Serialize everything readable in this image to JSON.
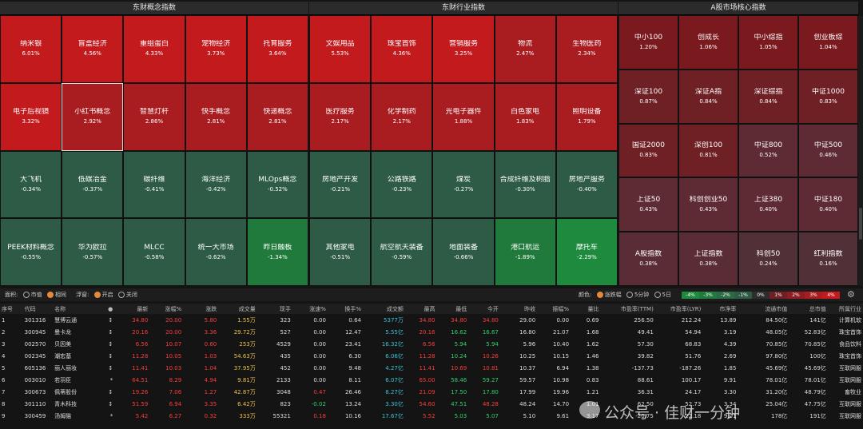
{
  "panels": {
    "concept_title": "东财概念指数",
    "industry_title": "东财行业指数",
    "market_title": "A股市场核心指数"
  },
  "concept_tiles": [
    {
      "name": "纳米银",
      "pct": "6.01%",
      "color": "#c31a1e"
    },
    {
      "name": "盲盒经济",
      "pct": "4.56%",
      "color": "#c31a1e"
    },
    {
      "name": "重组蛋白",
      "pct": "4.33%",
      "color": "#c31a1e"
    },
    {
      "name": "宠物经济",
      "pct": "3.73%",
      "color": "#c31a1e"
    },
    {
      "name": "托育服务",
      "pct": "3.64%",
      "color": "#c31a1e"
    },
    {
      "name": "电子后视镜",
      "pct": "3.32%",
      "color": "#c31a1e"
    },
    {
      "name": "小红书概念",
      "pct": "2.92%",
      "color": "#a91c20"
    },
    {
      "name": "智慧灯杆",
      "pct": "2.86%",
      "color": "#a91c20"
    },
    {
      "name": "快手概念",
      "pct": "2.81%",
      "color": "#a91c20"
    },
    {
      "name": "快递概念",
      "pct": "2.81%",
      "color": "#a91c20"
    },
    {
      "name": "大飞机",
      "pct": "-0.34%",
      "color": "#2d5b46"
    },
    {
      "name": "低碳冶金",
      "pct": "-0.37%",
      "color": "#2d5b46"
    },
    {
      "name": "碳纤维",
      "pct": "-0.41%",
      "color": "#2d5b46"
    },
    {
      "name": "海洋经济",
      "pct": "-0.42%",
      "color": "#2d5b46"
    },
    {
      "name": "MLOps概念",
      "pct": "-0.52%",
      "color": "#2d5b46"
    },
    {
      "name": "PEEK材料概念",
      "pct": "-0.55%",
      "color": "#2d5b46"
    },
    {
      "name": "华为欧拉",
      "pct": "-0.57%",
      "color": "#2d5b46"
    },
    {
      "name": "MLCC",
      "pct": "-0.58%",
      "color": "#2d5b46"
    },
    {
      "name": "统一大市场",
      "pct": "-0.62%",
      "color": "#2d5b46"
    },
    {
      "name": "昨日触板",
      "pct": "-1.34%",
      "color": "#1f7a3c"
    }
  ],
  "industry_tiles": [
    {
      "name": "文娱用品",
      "pct": "5.53%",
      "color": "#c31a1e"
    },
    {
      "name": "珠宝首饰",
      "pct": "4.36%",
      "color": "#c31a1e"
    },
    {
      "name": "营销服务",
      "pct": "3.25%",
      "color": "#c31a1e"
    },
    {
      "name": "物流",
      "pct": "2.47%",
      "color": "#a91c20"
    },
    {
      "name": "生物医药",
      "pct": "2.34%",
      "color": "#a91c20"
    },
    {
      "name": "医疗服务",
      "pct": "2.17%",
      "color": "#a91c20"
    },
    {
      "name": "化学制药",
      "pct": "2.17%",
      "color": "#a91c20"
    },
    {
      "name": "光电子器件",
      "pct": "1.88%",
      "color": "#a91c20"
    },
    {
      "name": "白色家电",
      "pct": "1.83%",
      "color": "#a91c20"
    },
    {
      "name": "照明设备",
      "pct": "1.79%",
      "color": "#a91c20"
    },
    {
      "name": "房地产开发",
      "pct": "-0.21%",
      "color": "#2d5b46"
    },
    {
      "name": "公路铁路",
      "pct": "-0.23%",
      "color": "#2d5b46"
    },
    {
      "name": "煤炭",
      "pct": "-0.27%",
      "color": "#2d5b46"
    },
    {
      "name": "合成纤维及树脂",
      "pct": "-0.30%",
      "color": "#2d5b46"
    },
    {
      "name": "房地产服务",
      "pct": "-0.40%",
      "color": "#2d5b46"
    },
    {
      "name": "其他家电",
      "pct": "-0.51%",
      "color": "#2d5b46"
    },
    {
      "name": "航空航天装备",
      "pct": "-0.59%",
      "color": "#2d5b46"
    },
    {
      "name": "地面装备",
      "pct": "-0.66%",
      "color": "#2d5b46"
    },
    {
      "name": "港口航运",
      "pct": "-1.89%",
      "color": "#1f7a3c"
    },
    {
      "name": "摩托车",
      "pct": "-2.29%",
      "color": "#1e8a3e"
    }
  ],
  "market_tiles": [
    {
      "name": "中小100",
      "pct": "1.20%",
      "color": "#7a1a1e"
    },
    {
      "name": "创成长",
      "pct": "1.06%",
      "color": "#7a1a1e"
    },
    {
      "name": "中小综指",
      "pct": "1.05%",
      "color": "#7a1a1e"
    },
    {
      "name": "创业板综",
      "pct": "1.04%",
      "color": "#7a1a1e"
    },
    {
      "name": "深证100",
      "pct": "0.87%",
      "color": "#6e2025"
    },
    {
      "name": "深证A指",
      "pct": "0.84%",
      "color": "#6e2025"
    },
    {
      "name": "深证综指",
      "pct": "0.84%",
      "color": "#6e2025"
    },
    {
      "name": "中证1000",
      "pct": "0.83%",
      "color": "#6e2025"
    },
    {
      "name": "国证2000",
      "pct": "0.83%",
      "color": "#6e2025"
    },
    {
      "name": "深创100",
      "pct": "0.81%",
      "color": "#6e2025"
    },
    {
      "name": "中证800",
      "pct": "0.52%",
      "color": "#5e2a33"
    },
    {
      "name": "中证500",
      "pct": "0.46%",
      "color": "#5e2a33"
    },
    {
      "name": "上证50",
      "pct": "0.43%",
      "color": "#5e2a33"
    },
    {
      "name": "科创创业50",
      "pct": "0.43%",
      "color": "#5e2a33"
    },
    {
      "name": "上证380",
      "pct": "0.40%",
      "color": "#5e2a33"
    },
    {
      "name": "中证180",
      "pct": "0.40%",
      "color": "#5e2a33"
    },
    {
      "name": "A股指数",
      "pct": "0.38%",
      "color": "#5a2c36"
    },
    {
      "name": "上证指数",
      "pct": "0.38%",
      "color": "#5a2c36"
    },
    {
      "name": "科创50",
      "pct": "0.24%",
      "color": "#523038"
    },
    {
      "name": "红利指数",
      "pct": "0.16%",
      "color": "#523038"
    }
  ],
  "toolbar": {
    "area_label": "面积:",
    "area_opt1": "市值",
    "area_opt2": "相同",
    "float_label": "浮窗:",
    "float_opt1": "开启",
    "float_opt2": "关闭",
    "color_label": "颜色:",
    "color_opt1": "涨跌幅",
    "color_opt2": "5分钟",
    "color_opt3": "5日",
    "legend": [
      {
        "label": "-4%",
        "color": "#1e8a3e"
      },
      {
        "label": "-3%",
        "color": "#1f7a3c"
      },
      {
        "label": "-2%",
        "color": "#2a6a44"
      },
      {
        "label": "-1%",
        "color": "#2d5b46"
      },
      {
        "label": "0%",
        "color": "#2d2d2d"
      },
      {
        "label": "1%",
        "color": "#6e2025"
      },
      {
        "label": "2%",
        "color": "#8e1d22"
      },
      {
        "label": "3%",
        "color": "#a91c20"
      },
      {
        "label": "4%",
        "color": "#c31a1e"
      }
    ],
    "settings_icon": "gear-icon"
  },
  "table": {
    "headers": [
      "序号",
      "代码",
      "名称",
      "●",
      "最新",
      "涨幅%",
      "涨跌",
      "成交量",
      "现手",
      "涨速%",
      "换手%",
      "成交额",
      "最高",
      "最低",
      "今开",
      "昨收",
      "振幅%",
      "量比",
      "市盈率(TTM)",
      "市盈率(LYR)",
      "市净率",
      "流通市值",
      "总市值",
      "所属行业"
    ],
    "rows": [
      [
        "1",
        "301316",
        "慧博云通",
        "↕",
        "34.80",
        "20.00",
        "5.80",
        "1.55万",
        "323",
        "0.00",
        "0.64",
        "5377万",
        "34.80",
        "34.80",
        "34.80",
        "29.00",
        "0.00",
        "0.69",
        "256.50",
        "212.24",
        "13.89",
        "84.50亿",
        "141亿",
        "计算机软"
      ],
      [
        "2",
        "300945",
        "曼卡龙",
        "↕",
        "20.16",
        "20.00",
        "3.36",
        "29.72万",
        "527",
        "0.00",
        "12.47",
        "5.55亿",
        "20.16",
        "16.62",
        "16.67",
        "16.80",
        "21.07",
        "1.68",
        "49.41",
        "54.94",
        "3.19",
        "48.05亿",
        "52.83亿",
        "珠宝首饰"
      ],
      [
        "3",
        "002570",
        "贝因美",
        "↕",
        "6.56",
        "10.07",
        "0.60",
        "253万",
        "4529",
        "0.00",
        "23.41",
        "16.32亿",
        "6.56",
        "5.94",
        "5.94",
        "5.96",
        "10.40",
        "1.62",
        "57.30",
        "68.83",
        "4.39",
        "70.85亿",
        "70.85亿",
        "食品饮料"
      ],
      [
        "4",
        "002345",
        "潮宏基",
        "↕",
        "11.28",
        "10.05",
        "1.03",
        "54.63万",
        "435",
        "0.00",
        "6.30",
        "6.06亿",
        "11.28",
        "10.24",
        "10.26",
        "10.25",
        "10.15",
        "1.46",
        "39.82",
        "51.76",
        "2.69",
        "97.80亿",
        "100亿",
        "珠宝首饰"
      ],
      [
        "5",
        "605136",
        "丽人丽妆",
        "↕",
        "11.41",
        "10.03",
        "1.04",
        "37.95万",
        "452",
        "0.00",
        "9.48",
        "4.27亿",
        "11.41",
        "10.69",
        "10.81",
        "10.37",
        "6.94",
        "1.38",
        "-137.73",
        "-187.26",
        "1.85",
        "45.69亿",
        "45.69亿",
        "互联网服"
      ],
      [
        "6",
        "003010",
        "若羽臣",
        "*",
        "64.51",
        "8.29",
        "4.94",
        "9.81万",
        "2133",
        "0.00",
        "8.11",
        "6.07亿",
        "65.00",
        "58.46",
        "59.27",
        "59.57",
        "10.98",
        "0.83",
        "88.61",
        "100.17",
        "9.91",
        "78.01亿",
        "78.01亿",
        "互联网服"
      ],
      [
        "7",
        "300673",
        "佩蒂股份",
        "↕",
        "19.26",
        "7.06",
        "1.27",
        "42.87万",
        "3048",
        "0.47",
        "26.46",
        "8.27亿",
        "21.09",
        "17.50",
        "17.80",
        "17.99",
        "19.96",
        "1.21",
        "36.31",
        "24.17",
        "3.30",
        "31.20亿",
        "48.79亿",
        "畜牧业"
      ],
      [
        "8",
        "301110",
        "青木科技",
        "↕",
        "51.59",
        "6.94",
        "3.35",
        "6.42万",
        "823",
        "-0.02",
        "13.24",
        "3.30亿",
        "54.60",
        "47.51",
        "48.28",
        "48.24",
        "14.70",
        "1.01",
        "62.50",
        "52.73",
        "3.34",
        "25.04亿",
        "47.75亿",
        "互联网服"
      ],
      [
        "9",
        "300459",
        "汤姆猫",
        "*",
        "5.42",
        "6.27",
        "0.32",
        "333万",
        "55321",
        "0.18",
        "10.16",
        "17.67亿",
        "5.52",
        "5.03",
        "5.07",
        "5.10",
        "9.61",
        "3.17",
        "-20.75",
        "-22.18",
        "9.01",
        "178亿",
        "191亿",
        "互联网服"
      ]
    ]
  },
  "watermark": "公众号 · 佳财一分钟"
}
